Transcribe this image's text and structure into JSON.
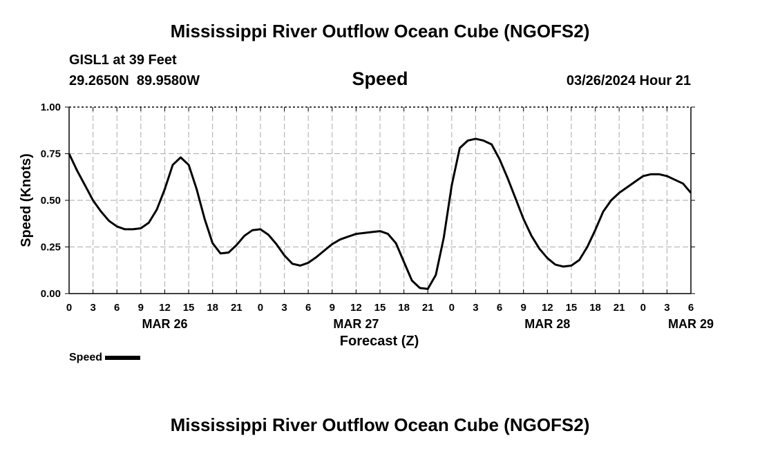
{
  "header": {
    "title": "Mississippi River Outflow Ocean Cube (NGOFS2)",
    "station": "GISL1 at 39 Feet",
    "coordinates": "29.2650N  89.9580W",
    "variable": "Speed",
    "datetime": "03/26/2024 Hour 21"
  },
  "footer": {
    "title": "Mississippi River Outflow Ocean Cube (NGOFS2)"
  },
  "legend": {
    "label": "Speed"
  },
  "chart_data": {
    "type": "line",
    "title": "Speed",
    "xlabel": "Forecast (Z)",
    "ylabel": "Speed (Knots)",
    "xlim": [
      0,
      78
    ],
    "ylim": [
      0,
      1
    ],
    "grid": true,
    "yticks": [
      0,
      0.25,
      0.5,
      0.75,
      1.0
    ],
    "ytick_labels": [
      "0.00",
      "0.25",
      "0.50",
      "0.75",
      "1.00"
    ],
    "xticks": [
      0,
      3,
      6,
      9,
      12,
      15,
      18,
      21,
      24,
      27,
      30,
      33,
      36,
      39,
      42,
      45,
      48,
      51,
      54,
      57,
      60,
      63,
      66,
      69,
      72,
      75,
      78
    ],
    "xtick_labels": [
      "0",
      "3",
      "6",
      "9",
      "12",
      "15",
      "18",
      "21",
      "0",
      "3",
      "6",
      "9",
      "12",
      "15",
      "18",
      "21",
      "0",
      "3",
      "6",
      "9",
      "12",
      "15",
      "18",
      "21",
      "0",
      "3",
      "6"
    ],
    "date_labels": [
      {
        "x": 12,
        "label": "MAR 26"
      },
      {
        "x": 36,
        "label": "MAR 27"
      },
      {
        "x": 60,
        "label": "MAR 28"
      },
      {
        "x": 78,
        "label": "MAR 29"
      }
    ],
    "series": [
      {
        "name": "Speed",
        "color": "#000000",
        "x": [
          0,
          1,
          2,
          3,
          4,
          5,
          6,
          7,
          8,
          9,
          10,
          11,
          12,
          13,
          14,
          15,
          16,
          17,
          18,
          19,
          20,
          21,
          22,
          23,
          24,
          25,
          26,
          27,
          28,
          29,
          30,
          31,
          32,
          33,
          34,
          35,
          36,
          37,
          38,
          39,
          40,
          41,
          42,
          43,
          44,
          45,
          46,
          47,
          48,
          49,
          50,
          51,
          52,
          53,
          54,
          55,
          56,
          57,
          58,
          59,
          60,
          61,
          62,
          63,
          64,
          65,
          66,
          67,
          68,
          69,
          70,
          71,
          72,
          73,
          74,
          75,
          76,
          77,
          78
        ],
        "values": [
          0.75,
          0.66,
          0.58,
          0.5,
          0.44,
          0.39,
          0.36,
          0.345,
          0.345,
          0.35,
          0.38,
          0.45,
          0.56,
          0.69,
          0.73,
          0.69,
          0.56,
          0.4,
          0.27,
          0.215,
          0.22,
          0.26,
          0.31,
          0.34,
          0.345,
          0.315,
          0.265,
          0.205,
          0.16,
          0.15,
          0.165,
          0.195,
          0.23,
          0.265,
          0.29,
          0.305,
          0.32,
          0.325,
          0.33,
          0.335,
          0.32,
          0.27,
          0.17,
          0.07,
          0.03,
          0.025,
          0.1,
          0.3,
          0.58,
          0.78,
          0.82,
          0.83,
          0.82,
          0.8,
          0.72,
          0.62,
          0.51,
          0.4,
          0.31,
          0.24,
          0.19,
          0.155,
          0.145,
          0.15,
          0.18,
          0.25,
          0.34,
          0.44,
          0.5,
          0.54,
          0.57,
          0.6,
          0.63,
          0.64,
          0.64,
          0.63,
          0.61,
          0.59,
          0.54
        ]
      }
    ]
  }
}
